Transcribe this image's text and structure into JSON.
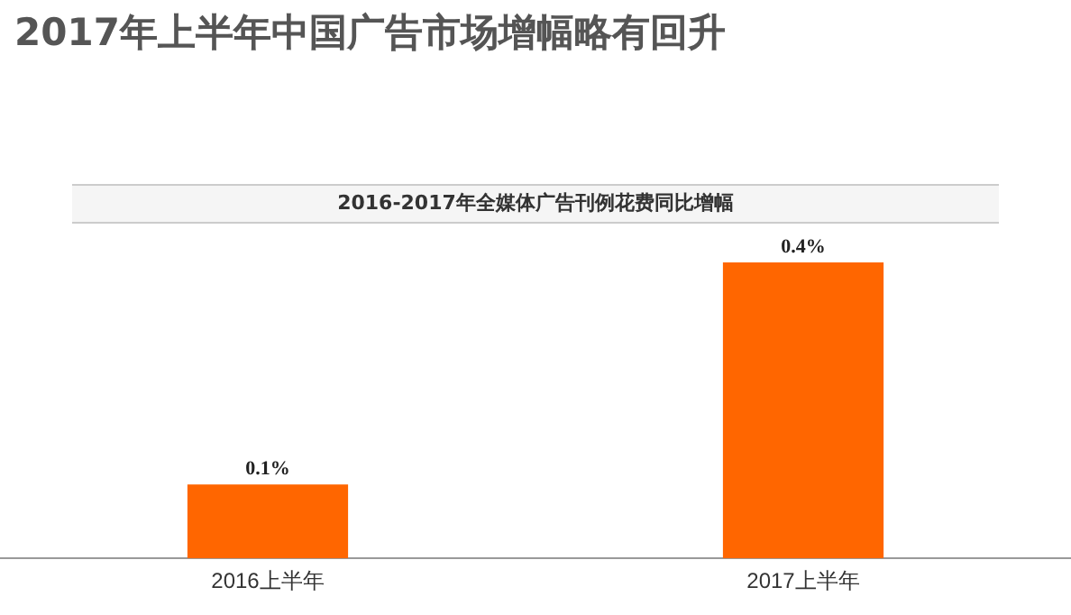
{
  "chart_data": {
    "type": "bar",
    "title": "2017年上半年中国广告市场增幅略有回升",
    "subtitle": "2016-2017年全媒体广告刊例花费同比增幅",
    "categories": [
      "2016上半年",
      "2017上半年"
    ],
    "values": [
      0.1,
      0.4
    ],
    "value_labels": [
      "0.1%",
      "0.4%"
    ],
    "color": "#ff6600",
    "ylim": [
      0,
      0.45
    ],
    "grid": false,
    "legend": false
  }
}
